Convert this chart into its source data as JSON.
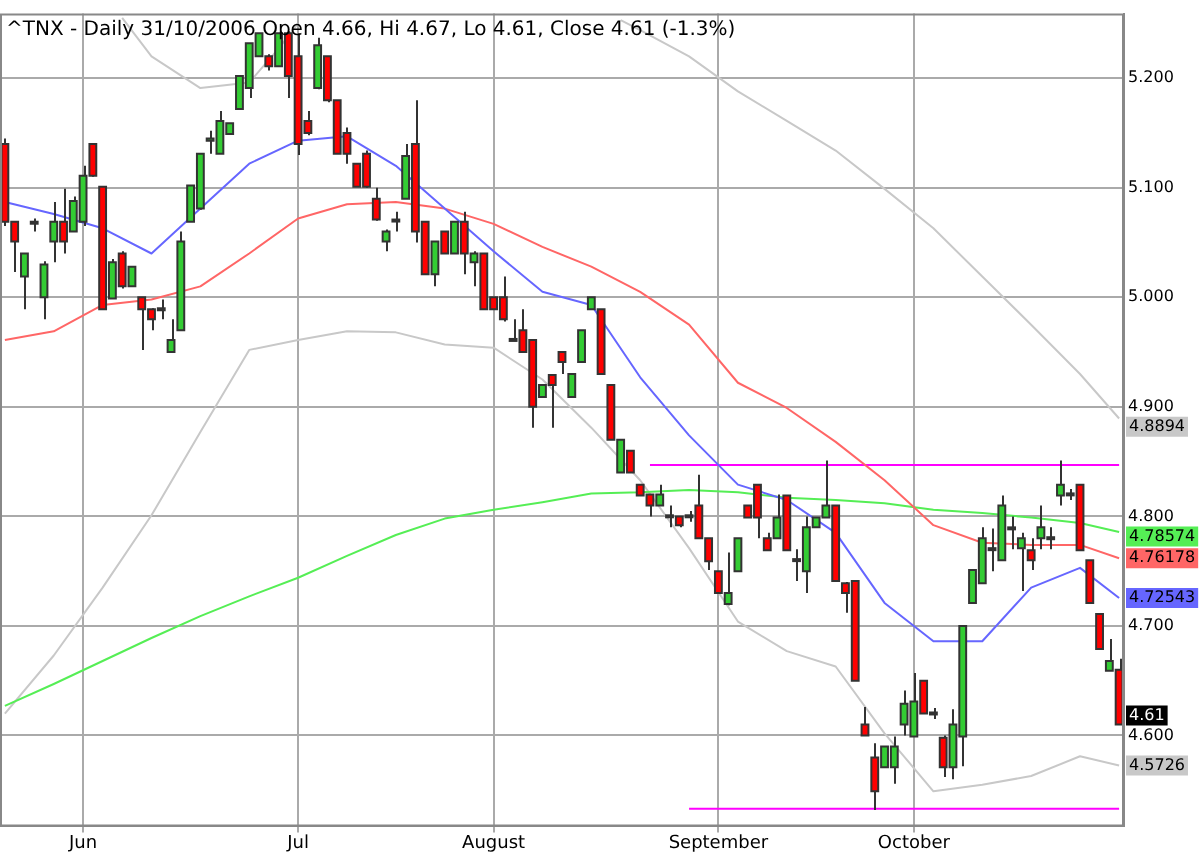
{
  "chart_data": {
    "type": "candlestick",
    "title": "^TNX - Daily 31/10/2006 Open 4.66, Hi 4.67, Lo 4.61, Close 4.61 (-1.3%)",
    "categories": [
      null,
      null,
      null,
      null,
      null,
      null,
      null,
      null,
      "Jun",
      null,
      null,
      null,
      null,
      null,
      null,
      null,
      null,
      null,
      null,
      null,
      null,
      null,
      null,
      null,
      null,
      null,
      null,
      null,
      null,
      null,
      "Jul",
      null,
      null,
      null,
      null,
      null,
      null,
      null,
      null,
      null,
      null,
      null,
      null,
      null,
      null,
      null,
      null,
      null,
      null,
      null,
      "August",
      null,
      null,
      null,
      null,
      null,
      null,
      null,
      null,
      null,
      null,
      null,
      null,
      null,
      null,
      null,
      null,
      null,
      null,
      null,
      null,
      null,
      null,
      "September",
      null,
      null,
      null,
      null,
      null,
      null,
      null,
      null,
      null,
      null,
      null,
      null,
      null,
      null,
      null,
      null,
      null,
      null,
      null,
      "October",
      null,
      null,
      null,
      null,
      null,
      null,
      null,
      null,
      null,
      null,
      null,
      null,
      null,
      null,
      null,
      null,
      null,
      null,
      null,
      null,
      null
    ],
    "ohlc": [
      [
        5.14,
        5.145,
        5.065,
        5.069
      ],
      [
        5.069,
        5.069,
        5.023,
        5.051
      ],
      [
        5.019,
        5.04,
        4.989,
        5.04
      ],
      [
        5.069,
        5.072,
        5.06,
        5.068
      ],
      [
        5.0,
        5.033,
        4.98,
        5.03
      ],
      [
        5.051,
        5.087,
        5.032,
        5.069
      ],
      [
        5.069,
        5.099,
        5.04,
        5.051
      ],
      [
        5.06,
        5.092,
        5.06,
        5.088
      ],
      [
        5.069,
        5.12,
        5.065,
        5.111
      ],
      [
        5.14,
        5.14,
        5.11,
        5.111
      ],
      [
        5.101,
        5.101,
        4.989,
        4.989
      ],
      [
        4.999,
        5.035,
        4.999,
        5.032
      ],
      [
        5.04,
        5.042,
        5.008,
        5.01
      ],
      [
        5.01,
        5.028,
        5.01,
        5.028
      ],
      [
        5.0,
        5.0,
        4.952,
        4.989
      ],
      [
        4.989,
        4.99,
        4.97,
        4.98
      ],
      [
        4.99,
        4.998,
        4.98,
        4.989
      ],
      [
        4.95,
        4.98,
        4.95,
        4.961
      ],
      [
        4.97,
        5.06,
        4.97,
        5.051
      ],
      [
        5.069,
        5.102,
        5.069,
        5.102
      ],
      [
        5.081,
        5.131,
        5.08,
        5.131
      ],
      [
        5.143,
        5.152,
        5.131,
        5.145
      ],
      [
        5.131,
        5.17,
        5.131,
        5.161
      ],
      [
        5.149,
        5.159,
        5.149,
        5.159
      ],
      [
        5.172,
        5.202,
        5.172,
        5.202
      ],
      [
        5.191,
        5.232,
        5.182,
        5.232
      ],
      [
        5.22,
        5.241,
        5.22,
        5.241
      ],
      [
        5.22,
        5.222,
        5.207,
        5.211
      ],
      [
        5.211,
        5.241,
        5.211,
        5.241
      ],
      [
        5.241,
        5.243,
        5.182,
        5.202
      ],
      [
        5.22,
        5.241,
        5.13,
        5.14
      ],
      [
        5.161,
        5.17,
        5.148,
        5.15
      ],
      [
        5.191,
        5.237,
        5.19,
        5.23
      ],
      [
        5.22,
        5.22,
        5.178,
        5.18
      ],
      [
        5.18,
        5.18,
        5.131,
        5.131
      ],
      [
        5.15,
        5.155,
        5.122,
        5.131
      ],
      [
        5.122,
        5.122,
        5.101,
        5.101
      ],
      [
        5.131,
        5.134,
        5.1,
        5.101
      ],
      [
        5.09,
        5.1,
        5.07,
        5.071
      ],
      [
        5.051,
        5.062,
        5.042,
        5.06
      ],
      [
        5.071,
        5.078,
        5.06,
        5.071
      ],
      [
        5.09,
        5.14,
        5.09,
        5.129
      ],
      [
        5.14,
        5.18,
        5.05,
        5.06
      ],
      [
        5.069,
        5.069,
        5.021,
        5.021
      ],
      [
        5.021,
        5.051,
        5.01,
        5.051
      ],
      [
        5.06,
        5.06,
        5.04,
        5.04
      ],
      [
        5.04,
        5.069,
        5.04,
        5.069
      ],
      [
        5.069,
        5.078,
        5.021,
        5.04
      ],
      [
        5.032,
        5.042,
        5.01,
        5.04
      ],
      [
        5.04,
        5.04,
        4.989,
        4.989
      ],
      [
        5.0,
        5.0,
        4.989,
        4.989
      ],
      [
        5.0,
        5.019,
        4.978,
        4.98
      ],
      [
        4.962,
        4.98,
        4.96,
        4.961
      ],
      [
        4.97,
        4.989,
        4.95,
        4.95
      ],
      [
        4.961,
        4.961,
        4.881,
        4.9
      ],
      [
        4.909,
        4.92,
        4.908,
        4.92
      ],
      [
        4.929,
        4.93,
        4.881,
        4.92
      ],
      [
        4.95,
        4.95,
        4.93,
        4.941
      ],
      [
        4.909,
        4.93,
        4.909,
        4.93
      ],
      [
        4.941,
        4.97,
        4.941,
        4.97
      ],
      [
        4.989,
        5.0,
        4.989,
        5.0
      ],
      [
        4.989,
        4.989,
        4.93,
        4.93
      ],
      [
        4.92,
        4.92,
        4.87,
        4.87
      ],
      [
        4.84,
        4.87,
        4.84,
        4.87
      ],
      [
        4.86,
        4.86,
        4.84,
        4.84
      ],
      [
        4.829,
        4.829,
        4.819,
        4.819
      ],
      [
        4.82,
        4.82,
        4.8,
        4.81
      ],
      [
        4.81,
        4.829,
        4.81,
        4.82
      ],
      [
        4.8,
        4.81,
        4.79,
        4.801
      ],
      [
        4.8,
        4.8,
        4.79,
        4.792
      ],
      [
        4.8,
        4.805,
        4.795,
        4.801
      ],
      [
        4.81,
        4.838,
        4.78,
        4.78
      ],
      [
        4.78,
        4.78,
        4.751,
        4.759
      ],
      [
        4.75,
        4.75,
        4.73,
        4.73
      ],
      [
        4.72,
        4.767,
        4.719,
        4.73
      ],
      [
        4.75,
        4.78,
        4.75,
        4.78
      ],
      [
        4.81,
        4.81,
        4.799,
        4.799
      ],
      [
        4.829,
        4.829,
        4.78,
        4.799
      ],
      [
        4.78,
        4.785,
        4.769,
        4.769
      ],
      [
        4.78,
        4.82,
        4.78,
        4.799
      ],
      [
        4.819,
        4.819,
        4.769,
        4.769
      ],
      [
        4.76,
        4.77,
        4.741,
        4.761
      ],
      [
        4.75,
        4.8,
        4.73,
        4.79
      ],
      [
        4.79,
        4.799,
        4.79,
        4.799
      ],
      [
        4.799,
        4.851,
        4.799,
        4.81
      ],
      [
        4.81,
        4.81,
        4.741,
        4.741
      ],
      [
        4.739,
        4.74,
        4.712,
        4.73
      ],
      [
        4.741,
        4.741,
        4.65,
        4.65
      ],
      [
        4.61,
        4.626,
        4.6,
        4.6
      ],
      [
        4.58,
        4.593,
        4.532,
        4.549
      ],
      [
        4.571,
        4.59,
        4.571,
        4.59
      ],
      [
        4.571,
        4.599,
        4.556,
        4.59
      ],
      [
        4.61,
        4.641,
        4.6,
        4.629
      ],
      [
        4.599,
        4.657,
        4.599,
        4.631
      ],
      [
        4.65,
        4.65,
        4.62,
        4.62
      ],
      [
        4.62,
        4.625,
        4.615,
        4.621
      ],
      [
        4.598,
        4.6,
        4.562,
        4.571
      ],
      [
        4.571,
        4.624,
        4.56,
        4.61
      ],
      [
        4.599,
        4.7,
        4.572,
        4.7
      ],
      [
        4.721,
        4.751,
        4.721,
        4.751
      ],
      [
        4.739,
        4.79,
        4.739,
        4.78
      ],
      [
        4.77,
        4.789,
        4.75,
        4.771
      ],
      [
        4.76,
        4.819,
        4.76,
        4.81
      ],
      [
        4.789,
        4.8,
        4.77,
        4.79
      ],
      [
        4.771,
        4.785,
        4.732,
        4.78
      ],
      [
        4.769,
        4.78,
        4.751,
        4.76
      ],
      [
        4.78,
        4.81,
        4.77,
        4.79
      ],
      [
        4.78,
        4.79,
        4.77,
        4.781
      ],
      [
        4.819,
        4.851,
        4.81,
        4.829
      ],
      [
        4.82,
        4.825,
        4.815,
        4.821
      ],
      [
        4.829,
        4.829,
        4.769,
        4.769
      ],
      [
        4.76,
        4.76,
        4.721,
        4.721
      ],
      [
        4.711,
        4.711,
        4.679,
        4.679
      ],
      [
        4.659,
        4.688,
        4.659,
        4.668
      ],
      [
        4.66,
        4.67,
        4.61,
        4.61
      ]
    ],
    "series": [
      {
        "type": "line",
        "color": "#6666ff",
        "values": [
          5.087,
          null,
          null,
          null,
          null,
          5.076,
          null,
          null,
          null,
          null,
          5.063,
          null,
          null,
          null,
          null,
          5.04,
          null,
          null,
          null,
          null,
          5.081,
          null,
          null,
          null,
          null,
          5.122,
          null,
          null,
          null,
          null,
          5.143,
          null,
          null,
          null,
          null,
          5.147,
          null,
          null,
          null,
          null,
          5.12,
          null,
          null,
          null,
          null,
          5.081,
          null,
          null,
          null,
          null,
          5.042,
          null,
          null,
          null,
          null,
          5.005,
          null,
          null,
          null,
          null,
          4.993,
          null,
          null,
          null,
          null,
          4.927,
          null,
          null,
          null,
          null,
          4.874,
          null,
          null,
          null,
          null,
          4.829,
          null,
          null,
          null,
          null,
          4.815,
          null,
          null,
          null,
          null,
          4.785,
          null,
          null,
          null,
          null,
          4.721,
          null,
          null,
          null,
          null,
          4.686,
          null,
          null,
          null,
          null,
          4.686,
          null,
          null,
          null,
          null,
          4.735,
          null,
          null,
          null,
          null,
          4.753,
          null,
          null,
          null,
          4.72543
        ],
        "value_labels": [
          null,
          null,
          null,
          null,
          null,
          null,
          null,
          null,
          null,
          null,
          null,
          null,
          null,
          null,
          null,
          null,
          null,
          null,
          null,
          null,
          null,
          null,
          null,
          null,
          null,
          null,
          null,
          null,
          null,
          null,
          null,
          null,
          null,
          null,
          null,
          null,
          null,
          null,
          null,
          null,
          null,
          null,
          null,
          null,
          null,
          null,
          null,
          null,
          null,
          null,
          null,
          null,
          null,
          null,
          null,
          null,
          null,
          null,
          null,
          null,
          null,
          null,
          null,
          null,
          null,
          null,
          null,
          null,
          null,
          null,
          null,
          null,
          null,
          null,
          null,
          null,
          null,
          null,
          null,
          null,
          null,
          null,
          null,
          null,
          null,
          null,
          null,
          null,
          null,
          null,
          null,
          null,
          null,
          null,
          null,
          null,
          null,
          null,
          null,
          null,
          null,
          null,
          null,
          null,
          null,
          null,
          null,
          null,
          null,
          null,
          null,
          null,
          null,
          null,
          "4.72543"
        ]
      },
      {
        "type": "line",
        "color": "#ff6666",
        "values": [
          4.961,
          null,
          null,
          null,
          null,
          4.969,
          null,
          null,
          null,
          null,
          4.993,
          null,
          null,
          null,
          null,
          4.998,
          null,
          null,
          null,
          null,
          5.01,
          null,
          null,
          null,
          null,
          5.04,
          null,
          null,
          null,
          null,
          5.072,
          null,
          null,
          null,
          null,
          5.085,
          null,
          null,
          null,
          null,
          5.087,
          null,
          null,
          null,
          null,
          5.081,
          null,
          null,
          null,
          null,
          5.067,
          null,
          null,
          null,
          null,
          5.046,
          null,
          null,
          null,
          null,
          5.028,
          null,
          null,
          null,
          null,
          5.005,
          null,
          null,
          null,
          null,
          4.975,
          null,
          null,
          null,
          null,
          4.922,
          null,
          null,
          null,
          null,
          4.899,
          null,
          null,
          null,
          null,
          4.868,
          null,
          null,
          null,
          null,
          4.833,
          null,
          null,
          null,
          null,
          4.792,
          null,
          null,
          null,
          null,
          4.776,
          null,
          null,
          null,
          null,
          4.774,
          null,
          null,
          null,
          null,
          4.774,
          null,
          null,
          null,
          4.76178
        ],
        "value_labels": [
          null,
          null,
          null,
          null,
          null,
          null,
          null,
          null,
          null,
          null,
          null,
          null,
          null,
          null,
          null,
          null,
          null,
          null,
          null,
          null,
          null,
          null,
          null,
          null,
          null,
          null,
          null,
          null,
          null,
          null,
          null,
          null,
          null,
          null,
          null,
          null,
          null,
          null,
          null,
          null,
          null,
          null,
          null,
          null,
          null,
          null,
          null,
          null,
          null,
          null,
          null,
          null,
          null,
          null,
          null,
          null,
          null,
          null,
          null,
          null,
          null,
          null,
          null,
          null,
          null,
          null,
          null,
          null,
          null,
          null,
          null,
          null,
          null,
          null,
          null,
          null,
          null,
          null,
          null,
          null,
          null,
          null,
          null,
          null,
          null,
          null,
          null,
          null,
          null,
          null,
          null,
          null,
          null,
          null,
          null,
          null,
          null,
          null,
          null,
          null,
          null,
          null,
          null,
          null,
          null,
          null,
          null,
          null,
          null,
          null,
          null,
          null,
          null,
          null,
          "4.76178"
        ]
      },
      {
        "type": "line",
        "color": "#55ee55",
        "values": [
          4.627,
          null,
          null,
          null,
          null,
          4.647,
          null,
          null,
          null,
          null,
          4.668,
          null,
          null,
          null,
          null,
          4.689,
          null,
          null,
          null,
          null,
          4.709,
          null,
          null,
          null,
          null,
          4.727,
          null,
          null,
          null,
          null,
          4.744,
          null,
          null,
          null,
          null,
          4.764,
          null,
          null,
          null,
          null,
          4.783,
          null,
          null,
          null,
          null,
          4.798,
          null,
          null,
          null,
          null,
          4.806,
          null,
          null,
          null,
          null,
          4.813,
          null,
          null,
          null,
          null,
          4.821,
          null,
          null,
          null,
          null,
          4.822,
          null,
          null,
          null,
          null,
          4.824,
          null,
          null,
          null,
          null,
          4.822,
          null,
          null,
          null,
          null,
          4.817,
          null,
          null,
          null,
          null,
          4.815,
          null,
          null,
          null,
          null,
          4.812,
          null,
          null,
          null,
          null,
          4.806,
          null,
          null,
          null,
          null,
          4.803,
          null,
          null,
          null,
          null,
          4.799,
          null,
          null,
          null,
          null,
          4.794,
          null,
          null,
          null,
          4.78574
        ],
        "value_labels": [
          null,
          null,
          null,
          null,
          null,
          null,
          null,
          null,
          null,
          null,
          null,
          null,
          null,
          null,
          null,
          null,
          null,
          null,
          null,
          null,
          null,
          null,
          null,
          null,
          null,
          null,
          null,
          null,
          null,
          null,
          null,
          null,
          null,
          null,
          null,
          null,
          null,
          null,
          null,
          null,
          null,
          null,
          null,
          null,
          null,
          null,
          null,
          null,
          null,
          null,
          null,
          null,
          null,
          null,
          null,
          null,
          null,
          null,
          null,
          null,
          null,
          null,
          null,
          null,
          null,
          null,
          null,
          null,
          null,
          null,
          null,
          null,
          null,
          null,
          null,
          null,
          null,
          null,
          null,
          null,
          null,
          null,
          null,
          null,
          null,
          null,
          null,
          null,
          null,
          null,
          null,
          null,
          null,
          null,
          null,
          null,
          null,
          null,
          null,
          null,
          null,
          null,
          null,
          null,
          null,
          null,
          null,
          null,
          null,
          null,
          null,
          null,
          null,
          null,
          "4.78574"
        ]
      },
      {
        "type": "line",
        "color": "#c8c8c8",
        "values": [
          4.62,
          null,
          null,
          null,
          null,
          4.673,
          null,
          null,
          null,
          null,
          4.735,
          null,
          null,
          null,
          null,
          4.801,
          null,
          null,
          null,
          null,
          4.877,
          null,
          null,
          null,
          null,
          4.952,
          null,
          null,
          null,
          null,
          4.961,
          null,
          null,
          null,
          null,
          4.969,
          null,
          null,
          null,
          null,
          4.968,
          null,
          null,
          null,
          null,
          4.957,
          null,
          null,
          null,
          null,
          4.954,
          null,
          null,
          null,
          null,
          4.925,
          null,
          null,
          null,
          null,
          4.881,
          null,
          null,
          null,
          null,
          4.833,
          null,
          null,
          null,
          null,
          4.771,
          null,
          null,
          null,
          null,
          4.704,
          null,
          null,
          null,
          null,
          4.677,
          null,
          null,
          null,
          null,
          4.663,
          null,
          null,
          null,
          null,
          4.602,
          null,
          null,
          null,
          null,
          4.549,
          null,
          null,
          null,
          null,
          4.555,
          null,
          null,
          null,
          null,
          4.563,
          null,
          null,
          null,
          null,
          4.581,
          null,
          null,
          null,
          4.5726
        ],
        "value_labels": [
          null,
          null,
          null,
          null,
          null,
          null,
          null,
          null,
          null,
          null,
          null,
          null,
          null,
          null,
          null,
          null,
          null,
          null,
          null,
          null,
          null,
          null,
          null,
          null,
          null,
          null,
          null,
          null,
          null,
          null,
          null,
          null,
          null,
          null,
          null,
          null,
          null,
          null,
          null,
          null,
          null,
          null,
          null,
          null,
          null,
          null,
          null,
          null,
          null,
          null,
          null,
          null,
          null,
          null,
          null,
          null,
          null,
          null,
          null,
          null,
          null,
          null,
          null,
          null,
          null,
          null,
          null,
          null,
          null,
          null,
          null,
          null,
          null,
          null,
          null,
          null,
          null,
          null,
          null,
          null,
          null,
          null,
          null,
          null,
          null,
          null,
          null,
          null,
          null,
          null,
          null,
          null,
          null,
          null,
          null,
          null,
          null,
          null,
          null,
          null,
          null,
          null,
          null,
          null,
          null,
          null,
          null,
          null,
          null,
          null,
          null,
          null,
          null,
          null,
          "4.5726"
        ]
      },
      {
        "type": "line",
        "color": "#c8c8c8",
        "values": [
          null,
          null,
          null,
          null,
          null,
          null,
          null,
          null,
          null,
          null,
          null,
          null,
          5.255,
          null,
          null,
          5.22,
          null,
          null,
          null,
          null,
          5.191,
          null,
          null,
          null,
          null,
          5.196,
          null,
          null,
          5.227,
          null,
          5.25,
          null,
          null,
          null,
          null,
          null,
          null,
          null,
          null,
          null,
          null,
          null,
          null,
          null,
          null,
          null,
          null,
          null,
          null,
          null,
          null,
          null,
          null,
          null,
          null,
          null,
          null,
          null,
          null,
          null,
          null,
          null,
          null,
          null,
          null,
          null,
          null,
          null,
          null,
          null,
          null,
          null,
          null,
          null,
          null,
          null,
          null,
          null,
          null,
          null,
          null,
          null,
          null,
          null,
          null,
          null,
          null,
          null,
          null,
          null,
          null,
          null,
          null,
          null,
          null,
          null,
          null,
          null,
          null,
          null,
          null,
          null,
          null,
          null,
          null,
          null,
          null,
          null,
          null,
          null,
          null,
          null,
          null,
          null,
          null
        ]
      },
      {
        "type": "line",
        "color": "#c8c8c8",
        "values": [
          null,
          null,
          null,
          null,
          null,
          null,
          null,
          null,
          null,
          null,
          null,
          null,
          null,
          null,
          null,
          null,
          null,
          null,
          null,
          null,
          null,
          null,
          null,
          null,
          null,
          null,
          null,
          null,
          null,
          null,
          null,
          null,
          null,
          null,
          null,
          null,
          null,
          null,
          null,
          null,
          null,
          null,
          null,
          null,
          null,
          null,
          null,
          null,
          null,
          null,
          null,
          null,
          null,
          null,
          null,
          null,
          null,
          null,
          null,
          null,
          null,
          null,
          null,
          5.253,
          null,
          5.244,
          null,
          null,
          null,
          null,
          5.22,
          null,
          null,
          null,
          null,
          5.188,
          null,
          null,
          null,
          null,
          5.161,
          null,
          null,
          null,
          null,
          5.134,
          null,
          null,
          null,
          null,
          5.099,
          null,
          null,
          null,
          null,
          5.063,
          null,
          null,
          null,
          null,
          5.019,
          null,
          null,
          null,
          null,
          4.975,
          null,
          null,
          null,
          null,
          4.93,
          null,
          null,
          null,
          4.8894
        ],
        "value_labels": [
          null,
          null,
          null,
          null,
          null,
          null,
          null,
          null,
          null,
          null,
          null,
          null,
          null,
          null,
          null,
          null,
          null,
          null,
          null,
          null,
          null,
          null,
          null,
          null,
          null,
          null,
          null,
          null,
          null,
          null,
          null,
          null,
          null,
          null,
          null,
          null,
          null,
          null,
          null,
          null,
          null,
          null,
          null,
          null,
          null,
          null,
          null,
          null,
          null,
          null,
          null,
          null,
          null,
          null,
          null,
          null,
          null,
          null,
          null,
          null,
          null,
          null,
          null,
          null,
          null,
          null,
          null,
          null,
          null,
          null,
          null,
          null,
          null,
          null,
          null,
          null,
          null,
          null,
          null,
          null,
          null,
          null,
          null,
          null,
          null,
          null,
          null,
          null,
          null,
          null,
          null,
          null,
          null,
          null,
          null,
          null,
          null,
          null,
          null,
          null,
          null,
          null,
          null,
          null,
          null,
          null,
          null,
          null,
          null,
          null,
          null,
          null,
          null,
          null,
          "4.8894"
        ]
      },
      {
        "type": "line",
        "color": "#ff00ff",
        "values": [
          null,
          null,
          null,
          null,
          null,
          null,
          null,
          null,
          null,
          null,
          null,
          null,
          null,
          null,
          null,
          null,
          null,
          null,
          null,
          null,
          null,
          null,
          null,
          null,
          null,
          null,
          null,
          null,
          null,
          null,
          null,
          null,
          null,
          null,
          null,
          null,
          null,
          null,
          null,
          null,
          null,
          null,
          null,
          null,
          null,
          null,
          null,
          null,
          null,
          null,
          null,
          null,
          null,
          null,
          null,
          null,
          null,
          null,
          null,
          null,
          null,
          null,
          null,
          null,
          null,
          null,
          4.847,
          null,
          null,
          null,
          null,
          null,
          null,
          null,
          null,
          null,
          null,
          null,
          null,
          null,
          null,
          null,
          null,
          null,
          null,
          null,
          null,
          null,
          null,
          null,
          null,
          null,
          null,
          null,
          null,
          null,
          null,
          null,
          null,
          null,
          null,
          null,
          null,
          null,
          null,
          null,
          null,
          null,
          null,
          null,
          null,
          null,
          null,
          null,
          4.847
        ]
      },
      {
        "type": "line",
        "color": "#ff00ff",
        "values": [
          null,
          null,
          null,
          null,
          null,
          null,
          null,
          null,
          null,
          null,
          null,
          null,
          null,
          null,
          null,
          null,
          null,
          null,
          null,
          null,
          null,
          null,
          null,
          null,
          null,
          null,
          null,
          null,
          null,
          null,
          null,
          null,
          null,
          null,
          null,
          null,
          null,
          null,
          null,
          null,
          null,
          null,
          null,
          null,
          null,
          null,
          null,
          null,
          null,
          null,
          null,
          null,
          null,
          null,
          null,
          null,
          null,
          null,
          null,
          null,
          null,
          null,
          null,
          null,
          null,
          null,
          null,
          null,
          null,
          null,
          4.533,
          null,
          null,
          null,
          null,
          null,
          null,
          null,
          null,
          null,
          null,
          null,
          null,
          null,
          null,
          null,
          null,
          null,
          null,
          null,
          null,
          null,
          null,
          null,
          null,
          null,
          null,
          null,
          null,
          null,
          null,
          null,
          null,
          null,
          null,
          null,
          null,
          null,
          null,
          null,
          null,
          null,
          null,
          null,
          4.533
        ]
      }
    ],
    "ylim": [
      4.517,
      5.259
    ],
    "yticks": [
      {
        "value": 4.6,
        "label": "4.600"
      },
      {
        "value": 4.7,
        "label": "4.700"
      },
      {
        "value": 4.8,
        "label": "4.800"
      },
      {
        "value": 4.9,
        "label": "4.900"
      },
      {
        "value": 5.0,
        "label": "5.000"
      },
      {
        "value": 5.1,
        "label": "5.100"
      },
      {
        "value": 5.2,
        "label": "5.200"
      }
    ],
    "grid": true,
    "annotations": [
      "4.61"
    ]
  }
}
